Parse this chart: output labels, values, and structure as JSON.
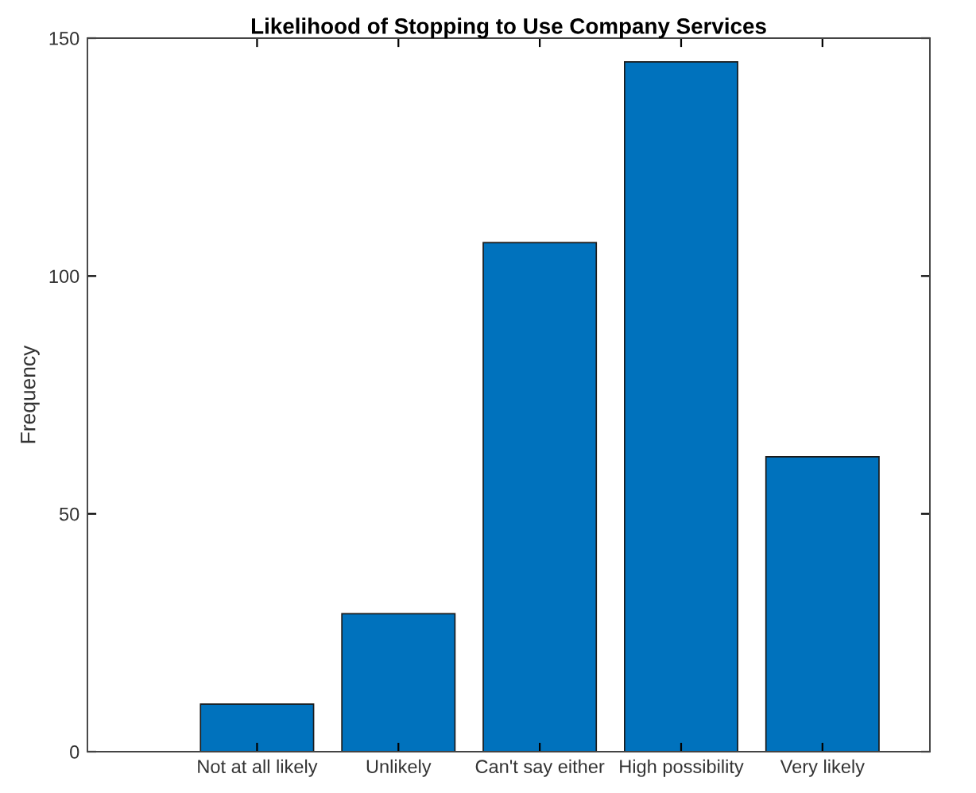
{
  "chart_data": {
    "type": "bar",
    "title": "Likelihood of Stopping to Use Company Services",
    "ylabel": "Frequency",
    "categories": [
      "Not at all likely",
      "Unlikely",
      "Can't say either",
      "High possibility",
      "Very likely"
    ],
    "values": [
      10,
      29,
      107,
      145,
      62
    ],
    "color": "#0072bd",
    "ylim": [
      0,
      150
    ],
    "yticks": [
      0,
      50,
      100,
      150
    ],
    "grid": false,
    "legend": false
  }
}
